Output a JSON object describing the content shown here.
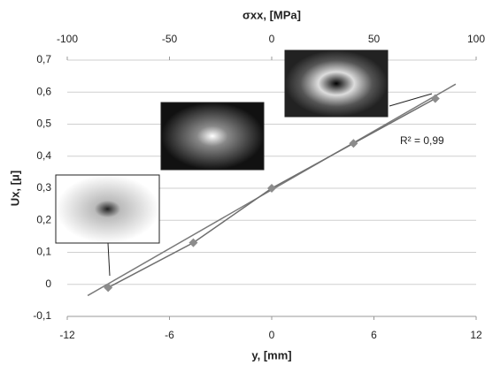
{
  "chart_data": {
    "type": "scatter",
    "xlabel": "y, [mm]",
    "ylabel": "Ux, [μ]",
    "x2label": "σxx, [MPa]",
    "annotation": "R² = 0,99",
    "x": [
      -9.6,
      -4.6,
      0,
      4.8,
      9.6
    ],
    "series": [
      {
        "color": "#8c8c8c",
        "line_color": "#6e6e6e",
        "values": [
          -0.01,
          0.13,
          0.3,
          0.44,
          0.58
        ]
      }
    ],
    "trendline": {
      "color": "#7a7a7a",
      "x": [
        -10.8,
        10.8
      ],
      "values": [
        -0.035,
        0.625
      ]
    },
    "xlim": [
      -12,
      12
    ],
    "xticks": [
      -12,
      -6,
      0,
      6,
      12
    ],
    "x2lim": [
      -100,
      100
    ],
    "x2ticks": [
      -100,
      -50,
      0,
      50,
      100
    ],
    "ylim": [
      -0.1,
      0.7
    ],
    "yticks": [
      {
        "value": -0.1,
        "label": "-0,1"
      },
      {
        "value": 0,
        "label": "0"
      },
      {
        "value": 0.1,
        "label": "0,1"
      },
      {
        "value": 0.2,
        "label": "0,2"
      },
      {
        "value": 0.3,
        "label": "0,3"
      },
      {
        "value": 0.4,
        "label": "0,4"
      },
      {
        "value": 0.5,
        "label": "0,5"
      },
      {
        "value": 0.6,
        "label": "0,6"
      },
      {
        "value": 0.7,
        "label": "0,7"
      }
    ],
    "grid": true
  }
}
